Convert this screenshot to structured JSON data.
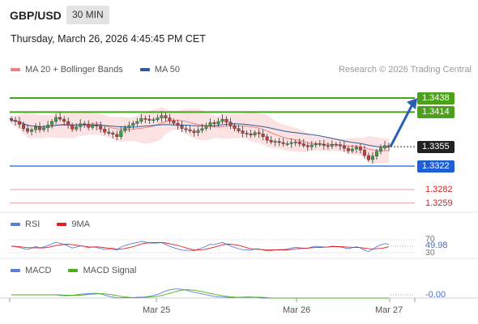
{
  "header": {
    "symbol": "GBP/USD",
    "timeframe": "30 MIN"
  },
  "timestamp": "Thursday, March 26, 2026 4:45:45 PM CET",
  "legend": {
    "main": [
      {
        "label": "MA 20 + Bollinger Bands",
        "color": "#f08080"
      },
      {
        "label": "MA 50",
        "color": "#2e5c99"
      }
    ],
    "rsi": [
      {
        "label": "RSI",
        "color": "#5b7fd6"
      },
      {
        "label": "9MA",
        "color": "#e02020"
      }
    ],
    "macd": [
      {
        "label": "MACD",
        "color": "#5b7fd6"
      },
      {
        "label": "MACD Signal",
        "color": "#4caf1a"
      }
    ]
  },
  "credit": "Research © 2026 Trading Central",
  "price_levels": [
    {
      "value": "1.3438",
      "style": "box",
      "color": "#4ca11a"
    },
    {
      "value": "1.3414",
      "style": "box",
      "color": "#4ca11a"
    },
    {
      "value": "1.3355",
      "style": "box",
      "color": "#222222"
    },
    {
      "value": "1.3322",
      "style": "box",
      "color": "#1f5fd6"
    },
    {
      "value": "1.3282",
      "style": "plain",
      "color": "#d22222"
    },
    {
      "value": "1.3259",
      "style": "plain",
      "color": "#d22222"
    }
  ],
  "rsi_levels": [
    "70",
    "30"
  ],
  "rsi_value": "49.98",
  "macd_value": "-0.00",
  "x_labels": [
    "Mar 25",
    "Mar 26",
    "Mar 27"
  ],
  "chart_data": {
    "type": "candlestick",
    "title": "GBP/USD",
    "timeframe": "30 MIN",
    "y_range": [
      1.325,
      1.345
    ],
    "horizontal_levels": {
      "resistance": [
        1.3438,
        1.3414
      ],
      "last_price": 1.3355,
      "pivot": 1.3322,
      "support": [
        1.3282,
        1.3259
      ]
    },
    "x_ticks": [
      "Mar 25",
      "Mar 26",
      "Mar 27"
    ],
    "close_series_approx": [
      1.34,
      1.3398,
      1.3393,
      1.3386,
      1.3381,
      1.3384,
      1.3389,
      1.3384,
      1.3387,
      1.3392,
      1.3398,
      1.3405,
      1.3402,
      1.3398,
      1.3392,
      1.3385,
      1.3389,
      1.3394,
      1.3393,
      1.3388,
      1.3392,
      1.339,
      1.3385,
      1.338,
      1.3378,
      1.3376,
      1.3372,
      1.3382,
      1.3387,
      1.3391,
      1.3395,
      1.3398,
      1.3403,
      1.3402,
      1.34,
      1.3401,
      1.3404,
      1.3408,
      1.3404,
      1.3399,
      1.3395,
      1.3391,
      1.3386,
      1.3384,
      1.3382,
      1.3379,
      1.3383,
      1.3386,
      1.3391,
      1.3396,
      1.3394,
      1.3398,
      1.3402,
      1.3397,
      1.3391,
      1.3386,
      1.3382,
      1.3378,
      1.3377,
      1.3375,
      1.3379,
      1.3377,
      1.3372,
      1.3366,
      1.3363,
      1.3364,
      1.3362,
      1.336,
      1.336,
      1.3362,
      1.3363,
      1.336,
      1.3357,
      1.3355,
      1.3358,
      1.336,
      1.3359,
      1.3357,
      1.3356,
      1.3359,
      1.3358,
      1.3356,
      1.3352,
      1.3348,
      1.3351,
      1.3354,
      1.3349,
      1.334,
      1.3333,
      1.3339,
      1.3347,
      1.3353,
      1.3357,
      1.3355
    ],
    "forecast_arrow": {
      "from": 1.3355,
      "to": 1.3438
    },
    "rsi": {
      "value": 49.98,
      "levels": [
        70,
        30
      ]
    },
    "macd": {
      "value": -0.0
    }
  }
}
